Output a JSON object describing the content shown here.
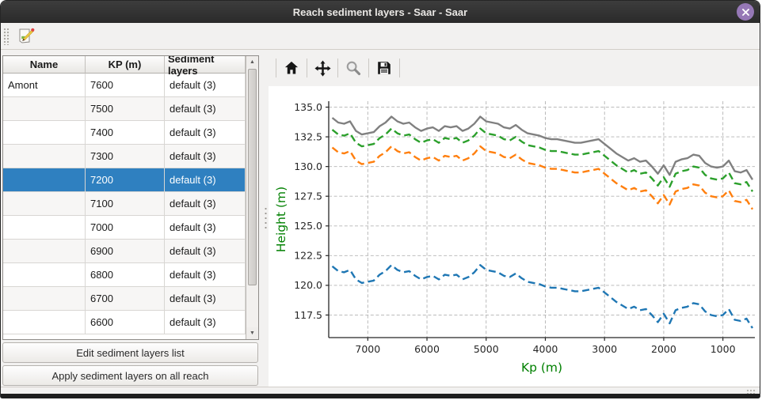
{
  "window": {
    "title": "Reach sediment layers - Saar - Saar"
  },
  "icons": {
    "close": "close-x-icon",
    "edit": "edit-document-pencil-icon",
    "home": "home-icon",
    "pan": "pan-arrows-icon",
    "zoom": "zoom-magnifier-icon",
    "save": "save-floppy-icon",
    "scroll_up": "▲",
    "scroll_down": "▼"
  },
  "colors": {
    "selection": "#2f80c0",
    "titlebar_close": "#9678b6",
    "axis_label_green": "#008000"
  },
  "table": {
    "columns": [
      "Name",
      "KP (m)",
      "Sediment layers"
    ],
    "rows": [
      {
        "name": "Amont",
        "kp": "7600",
        "layers": "default (3)",
        "selected": false
      },
      {
        "name": "",
        "kp": "7500",
        "layers": "default (3)",
        "selected": false
      },
      {
        "name": "",
        "kp": "7400",
        "layers": "default (3)",
        "selected": false
      },
      {
        "name": "",
        "kp": "7300",
        "layers": "default (3)",
        "selected": false
      },
      {
        "name": "",
        "kp": "7200",
        "layers": "default (3)",
        "selected": true
      },
      {
        "name": "",
        "kp": "7100",
        "layers": "default (3)",
        "selected": false
      },
      {
        "name": "",
        "kp": "7000",
        "layers": "default (3)",
        "selected": false
      },
      {
        "name": "",
        "kp": "6900",
        "layers": "default (3)",
        "selected": false
      },
      {
        "name": "",
        "kp": "6800",
        "layers": "default (3)",
        "selected": false
      },
      {
        "name": "",
        "kp": "6700",
        "layers": "default (3)",
        "selected": false
      },
      {
        "name": "",
        "kp": "6600",
        "layers": "default (3)",
        "selected": false
      }
    ]
  },
  "buttons": {
    "edit": "Edit sediment layers list",
    "apply": "Apply sediment layers on all reach"
  },
  "chart_data": {
    "type": "line",
    "xlabel": "Kp (m)",
    "ylabel": "Height (m)",
    "axis_label_color": "#008000",
    "grid": true,
    "legend": "none",
    "x_inverted": true,
    "xlim": [
      7660,
      460
    ],
    "ylim": [
      115.6,
      135.5
    ],
    "xticks": [
      7000,
      6000,
      5000,
      4000,
      3000,
      2000,
      1000
    ],
    "yticks": [
      117.5,
      120.0,
      122.5,
      125.0,
      127.5,
      130.0,
      132.5,
      135.0
    ],
    "x": [
      7600,
      7500,
      7400,
      7300,
      7200,
      7100,
      7000,
      6900,
      6800,
      6700,
      6600,
      6500,
      6400,
      6300,
      6200,
      6100,
      6000,
      5900,
      5800,
      5700,
      5600,
      5500,
      5400,
      5300,
      5200,
      5100,
      5000,
      4900,
      4800,
      4700,
      4600,
      4500,
      4400,
      4300,
      4200,
      4100,
      4000,
      3900,
      3800,
      3700,
      3600,
      3500,
      3400,
      3300,
      3200,
      3100,
      3000,
      2900,
      2800,
      2700,
      2600,
      2500,
      2400,
      2300,
      2200,
      2100,
      2000,
      1900,
      1800,
      1700,
      1600,
      1500,
      1400,
      1300,
      1200,
      1100,
      1000,
      900,
      800,
      700,
      600,
      500
    ],
    "series": [
      {
        "name": "gray-solid-top-line",
        "color": "#808080",
        "style": "solid",
        "values": [
          134.1,
          133.7,
          133.6,
          133.8,
          133.0,
          132.7,
          132.8,
          132.9,
          133.4,
          133.7,
          134.2,
          133.8,
          133.6,
          133.7,
          133.3,
          133.0,
          133.2,
          133.3,
          133.0,
          133.4,
          133.3,
          133.4,
          133.0,
          133.2,
          133.6,
          134.2,
          133.8,
          133.7,
          133.6,
          133.3,
          133.2,
          133.5,
          133.1,
          132.8,
          132.7,
          132.6,
          132.4,
          132.3,
          132.3,
          132.2,
          132.1,
          132.0,
          132.0,
          132.1,
          132.2,
          132.3,
          131.9,
          131.5,
          131.1,
          130.8,
          130.5,
          130.7,
          130.4,
          130.5,
          130.0,
          129.4,
          130.1,
          129.3,
          130.4,
          130.6,
          130.7,
          131.0,
          130.9,
          130.3,
          130.0,
          129.9,
          130.0,
          130.5,
          129.6,
          129.5,
          129.7,
          128.9
        ]
      },
      {
        "name": "green-dashed-line",
        "color": "#2ca02c",
        "style": "dashed",
        "values": [
          133.1,
          132.7,
          132.6,
          132.8,
          132.0,
          131.7,
          131.8,
          131.9,
          132.4,
          132.7,
          133.2,
          132.8,
          132.6,
          132.7,
          132.3,
          132.0,
          132.2,
          132.3,
          132.0,
          132.4,
          132.3,
          132.4,
          132.0,
          132.2,
          132.6,
          133.2,
          132.8,
          132.7,
          132.6,
          132.3,
          132.2,
          132.5,
          132.1,
          131.8,
          131.7,
          131.6,
          131.4,
          131.3,
          131.3,
          131.2,
          131.1,
          131.0,
          131.0,
          131.1,
          131.2,
          131.3,
          130.9,
          130.5,
          130.1,
          129.8,
          129.5,
          129.7,
          129.4,
          129.5,
          129.0,
          128.4,
          129.1,
          128.3,
          129.4,
          129.6,
          129.7,
          130.0,
          129.9,
          129.3,
          129.0,
          128.9,
          129.0,
          129.5,
          128.6,
          128.5,
          128.7,
          127.9
        ]
      },
      {
        "name": "orange-dashed-line",
        "color": "#ff7f0e",
        "style": "dashed",
        "values": [
          131.6,
          131.2,
          131.1,
          131.3,
          130.5,
          130.2,
          130.3,
          130.4,
          130.9,
          131.2,
          131.7,
          131.3,
          131.1,
          131.2,
          130.8,
          130.5,
          130.7,
          130.8,
          130.5,
          130.9,
          130.8,
          130.9,
          130.5,
          130.7,
          131.1,
          131.7,
          131.3,
          131.2,
          131.1,
          130.8,
          130.7,
          131.0,
          130.6,
          130.3,
          130.2,
          130.1,
          129.9,
          129.8,
          129.8,
          129.7,
          129.6,
          129.5,
          129.5,
          129.6,
          129.7,
          129.8,
          129.4,
          129.0,
          128.6,
          128.3,
          128.0,
          128.2,
          127.9,
          128.0,
          127.5,
          126.9,
          127.6,
          126.8,
          127.9,
          128.1,
          128.2,
          128.5,
          128.4,
          127.8,
          127.5,
          127.4,
          127.5,
          128.0,
          127.1,
          127.0,
          127.2,
          126.4
        ]
      },
      {
        "name": "blue-dashed-bottom-line",
        "color": "#1f77b4",
        "style": "dashed",
        "values": [
          121.6,
          121.2,
          121.1,
          121.3,
          120.5,
          120.2,
          120.3,
          120.4,
          120.9,
          121.2,
          121.7,
          121.3,
          121.1,
          121.2,
          120.8,
          120.5,
          120.7,
          120.8,
          120.5,
          120.9,
          120.8,
          120.9,
          120.5,
          120.7,
          121.1,
          121.7,
          121.3,
          121.2,
          121.1,
          120.8,
          120.7,
          121.0,
          120.6,
          120.3,
          120.2,
          120.1,
          119.9,
          119.8,
          119.8,
          119.7,
          119.6,
          119.5,
          119.5,
          119.6,
          119.7,
          119.8,
          119.4,
          119.0,
          118.6,
          118.3,
          118.0,
          118.2,
          117.9,
          118.0,
          117.5,
          116.9,
          117.6,
          116.8,
          117.9,
          118.1,
          118.2,
          118.5,
          118.4,
          117.8,
          117.5,
          117.4,
          117.5,
          118.0,
          117.1,
          117.0,
          117.2,
          116.4
        ]
      }
    ]
  }
}
